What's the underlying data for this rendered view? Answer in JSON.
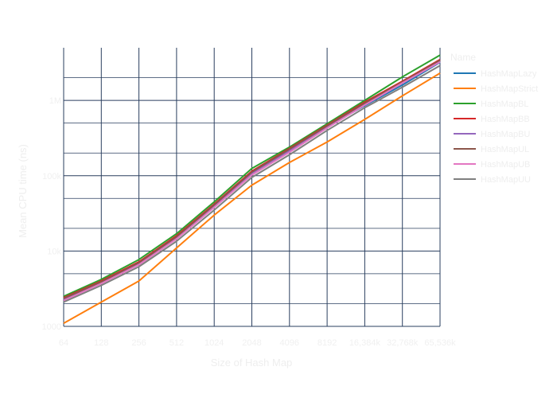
{
  "chart_data": {
    "type": "line",
    "xlabel": "Size of Hash Map",
    "ylabel": "Mean CPU time (ns)",
    "x_ticks": [
      "64",
      "128",
      "256",
      "512",
      "1024",
      "2048",
      "4096",
      "8192",
      "16,384k",
      "32,768k",
      "65,536k"
    ],
    "y_scale": "log",
    "y_tick_values": [
      1000,
      10000,
      100000,
      1000000
    ],
    "y_tick_labels": [
      "1000",
      "10k",
      "100k",
      "1M"
    ],
    "ylim": [
      1000,
      5000000
    ],
    "grid": true,
    "legend_placement": "right",
    "legend_title": "Name",
    "series": [
      {
        "name": "HashMapLazy",
        "color": "#1f77b4",
        "values": [
          2300,
          4000,
          7000,
          15000,
          40000,
          110000,
          220000,
          450000,
          850000,
          1600000,
          3200000
        ]
      },
      {
        "name": "HashMapStrict",
        "color": "#ff7f0e",
        "values": [
          1100,
          2100,
          4000,
          11000,
          30000,
          75000,
          150000,
          280000,
          560000,
          1150000,
          2300000
        ]
      },
      {
        "name": "HashMapBL",
        "color": "#2ca02c",
        "values": [
          2500,
          4200,
          7700,
          17000,
          45000,
          125000,
          240000,
          490000,
          1000000,
          2050000,
          4000000
        ]
      },
      {
        "name": "HashMapBB",
        "color": "#d62728",
        "values": [
          2400,
          4000,
          7200,
          16000,
          42000,
          115000,
          230000,
          470000,
          950000,
          1800000,
          3500000
        ]
      },
      {
        "name": "HashMapBU",
        "color": "#9467bd",
        "values": [
          2300,
          3800,
          6800,
          15000,
          40000,
          108000,
          215000,
          445000,
          900000,
          1700000,
          3300000
        ]
      },
      {
        "name": "HashMapUL",
        "color": "#8c564b",
        "values": [
          2350,
          3900,
          7000,
          15500,
          41000,
          112000,
          225000,
          460000,
          920000,
          1750000,
          3400000
        ]
      },
      {
        "name": "HashMapUB",
        "color": "#e377c2",
        "values": [
          2200,
          3700,
          6600,
          14500,
          38000,
          102000,
          205000,
          430000,
          870000,
          1700000,
          3250000
        ]
      },
      {
        "name": "HashMapUU",
        "color": "#7f7f7f",
        "values": [
          2100,
          3500,
          6200,
          13500,
          35000,
          95000,
          190000,
          400000,
          800000,
          1500000,
          2900000
        ]
      }
    ]
  }
}
